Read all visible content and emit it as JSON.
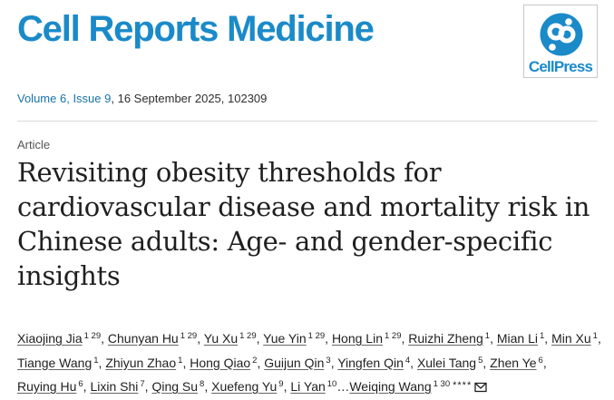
{
  "journal": {
    "title": "Cell Reports Medicine"
  },
  "logo": {
    "text": "CellPress",
    "icon": "cellpress-logo-icon"
  },
  "citation": {
    "volume": "Volume 6",
    "issue": "Issue 9",
    "rest": ", 16 September 2025, 102309"
  },
  "article": {
    "type": "Article",
    "title": "Revisiting obesity thresholds for cardiovascular disease and mortality risk in Chinese adults: Age- and gender-specific insights"
  },
  "authors": [
    {
      "name": "Xiaojing Jia",
      "sup": "1 29"
    },
    {
      "name": "Chunyan Hu",
      "sup": "1 29"
    },
    {
      "name": "Yu Xu",
      "sup": "1 29"
    },
    {
      "name": "Yue Yin",
      "sup": "1 29"
    },
    {
      "name": "Hong Lin",
      "sup": "1 29"
    },
    {
      "name": "Ruizhi Zheng",
      "sup": "1"
    },
    {
      "name": "Mian Li",
      "sup": "1"
    },
    {
      "name": "Min Xu",
      "sup": "1"
    },
    {
      "name": "Tiange Wang",
      "sup": "1"
    },
    {
      "name": "Zhiyun Zhao",
      "sup": "1"
    },
    {
      "name": "Hong Qiao",
      "sup": "2"
    },
    {
      "name": "Guijun Qin",
      "sup": "3"
    },
    {
      "name": "Yingfen Qin",
      "sup": "4"
    },
    {
      "name": "Xulei Tang",
      "sup": "5"
    },
    {
      "name": "Zhen Ye",
      "sup": "6"
    },
    {
      "name": "Ruying Hu",
      "sup": "6"
    },
    {
      "name": "Lixin Shi",
      "sup": "7"
    },
    {
      "name": "Qing Su",
      "sup": "8"
    },
    {
      "name": "Xuefeng Yu",
      "sup": "9"
    },
    {
      "name": "Li Yan",
      "sup": "10"
    },
    {
      "name": "Weiqing Wang",
      "sup": "1 30",
      "stars": "****",
      "mail": true
    }
  ],
  "authors_ellipsis": "…",
  "icons": {
    "mail": "envelope-icon"
  }
}
